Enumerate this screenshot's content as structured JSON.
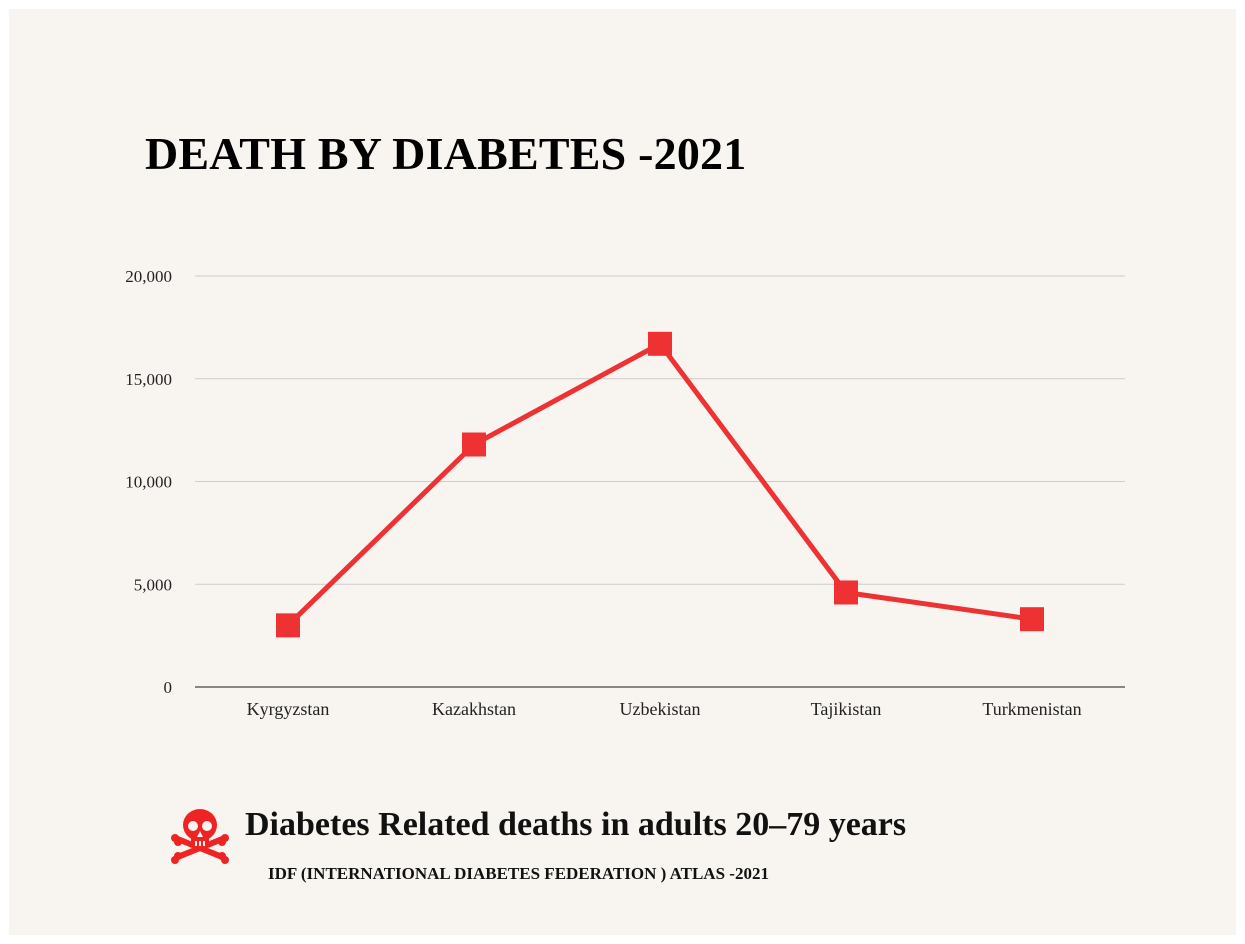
{
  "title": "DEATH BY DIABETES -2021",
  "caption": "Diabetes Related deaths in adults 20–79 years",
  "source": "IDF (INTERNATIONAL DIABETES FEDERATION ) ATLAS -2021",
  "icon": "skull-crossbones-icon",
  "colors": {
    "line": "#ee3233",
    "marker": "#ee3233",
    "grid": "#cccccc",
    "icon": "#ee2424",
    "background": "#f8f5f1"
  },
  "chart_data": {
    "type": "line",
    "title": "DEATH BY DIABETES -2021",
    "categories": [
      "Kyrgyzstan",
      "Kazakhstan",
      "Uzbekistan",
      "Tajikistan",
      "Turkmenistan"
    ],
    "series": [
      {
        "values": [
          3000,
          11800,
          16700,
          4600,
          3300
        ]
      }
    ],
    "ylim": [
      0,
      20000
    ],
    "yticks": [
      0,
      5000,
      10000,
      15000,
      20000
    ],
    "ytick_labels": [
      "0",
      "5,000",
      "10,000",
      "15,000",
      "20,000"
    ],
    "xlabel": "",
    "ylabel": "",
    "grid": true,
    "legend": false,
    "marker": "square"
  }
}
